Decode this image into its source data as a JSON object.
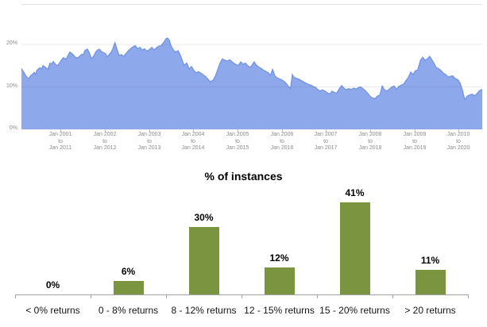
{
  "background": "#ffffff",
  "chart_data": [
    {
      "type": "area",
      "name": "rolling-10-year-returns",
      "ylim": [
        0,
        29.5
      ],
      "grid": "horizontal",
      "colors": {
        "fill": "#8DA9EC",
        "line": "#7392E2",
        "gridline": "rgba(90,90,90,0.14)",
        "top_border": "#e3e3e3",
        "axis_text": "#8b8b8b",
        "tick_mark": "#c2c2c2"
      },
      "y_labels": [
        {
          "label": "0%",
          "value": 0
        },
        {
          "label": "10%",
          "value": 10
        },
        {
          "label": "20%",
          "value": 20
        }
      ],
      "x_labels": [
        {
          "start": "Jan 2001",
          "connector": "to",
          "end": "Jan 2011"
        },
        {
          "start": "Jan 2002",
          "connector": "to",
          "end": "Jan 2012"
        },
        {
          "start": "Jan 2003",
          "connector": "to",
          "end": "Jan 2013"
        },
        {
          "start": "Jan 2004",
          "connector": "to",
          "end": "Jan 2014"
        },
        {
          "start": "Jan 2005",
          "connector": "to",
          "end": "Jan 2015"
        },
        {
          "start": "Jan 2006",
          "connector": "to",
          "end": "Jan 2016"
        },
        {
          "start": "Jan 2007",
          "connector": "to",
          "end": "Jan 2017"
        },
        {
          "start": "Jan 2008",
          "connector": "to",
          "end": "Jan 2018"
        },
        {
          "start": "Jan 2009",
          "connector": "to",
          "end": "Jan 2019"
        },
        {
          "start": "Jan 2010",
          "connector": "to",
          "end": "Jan 2020"
        }
      ],
      "points": [
        [
          0.0,
          14.3
        ],
        [
          0.005,
          13.5
        ],
        [
          0.01,
          12.5
        ],
        [
          0.016,
          11.9
        ],
        [
          0.019,
          12.5
        ],
        [
          0.022,
          12.8
        ],
        [
          0.028,
          13.4
        ],
        [
          0.031,
          13.0
        ],
        [
          0.034,
          14.0
        ],
        [
          0.04,
          14.5
        ],
        [
          0.043,
          14.2
        ],
        [
          0.047,
          15.0
        ],
        [
          0.052,
          14.6
        ],
        [
          0.057,
          14.1
        ],
        [
          0.062,
          15.6
        ],
        [
          0.066,
          15.4
        ],
        [
          0.069,
          16.0
        ],
        [
          0.074,
          15.3
        ],
        [
          0.079,
          15.0
        ],
        [
          0.083,
          15.7
        ],
        [
          0.086,
          16.2
        ],
        [
          0.091,
          16.9
        ],
        [
          0.097,
          16.5
        ],
        [
          0.1,
          17.2
        ],
        [
          0.105,
          18.2
        ],
        [
          0.109,
          17.9
        ],
        [
          0.114,
          17.4
        ],
        [
          0.117,
          17.0
        ],
        [
          0.121,
          16.8
        ],
        [
          0.126,
          17.2
        ],
        [
          0.131,
          17.7
        ],
        [
          0.134,
          17.5
        ],
        [
          0.138,
          18.6
        ],
        [
          0.143,
          18.9
        ],
        [
          0.147,
          18.1
        ],
        [
          0.152,
          16.6
        ],
        [
          0.157,
          17.3
        ],
        [
          0.16,
          18.0
        ],
        [
          0.164,
          18.6
        ],
        [
          0.169,
          18.9
        ],
        [
          0.174,
          18.3
        ],
        [
          0.178,
          18.1
        ],
        [
          0.183,
          17.8
        ],
        [
          0.186,
          17.1
        ],
        [
          0.191,
          17.7
        ],
        [
          0.195,
          18.2
        ],
        [
          0.198,
          18.9
        ],
        [
          0.203,
          20.4
        ],
        [
          0.207,
          19.0
        ],
        [
          0.212,
          17.4
        ],
        [
          0.217,
          17.6
        ],
        [
          0.222,
          17.2
        ],
        [
          0.228,
          18.0
        ],
        [
          0.233,
          18.6
        ],
        [
          0.238,
          19.1
        ],
        [
          0.243,
          19.5
        ],
        [
          0.247,
          19.7
        ],
        [
          0.252,
          19.0
        ],
        [
          0.257,
          19.3
        ],
        [
          0.262,
          18.7
        ],
        [
          0.267,
          19.0
        ],
        [
          0.272,
          18.4
        ],
        [
          0.278,
          18.8
        ],
        [
          0.283,
          19.3
        ],
        [
          0.288,
          18.7
        ],
        [
          0.293,
          19.2
        ],
        [
          0.298,
          19.6
        ],
        [
          0.303,
          19.7
        ],
        [
          0.309,
          20.5
        ],
        [
          0.314,
          21.4
        ],
        [
          0.317,
          21.5
        ],
        [
          0.321,
          21.0
        ],
        [
          0.324,
          19.8
        ],
        [
          0.329,
          18.8
        ],
        [
          0.334,
          18.2
        ],
        [
          0.34,
          18.5
        ],
        [
          0.345,
          17.4
        ],
        [
          0.35,
          15.9
        ],
        [
          0.353,
          15.1
        ],
        [
          0.359,
          15.6
        ],
        [
          0.364,
          14.2
        ],
        [
          0.369,
          14.8
        ],
        [
          0.374,
          13.9
        ],
        [
          0.379,
          13.3
        ],
        [
          0.384,
          13.6
        ],
        [
          0.39,
          13.2
        ],
        [
          0.395,
          12.8
        ],
        [
          0.4,
          12.4
        ],
        [
          0.405,
          11.8
        ],
        [
          0.41,
          11.2
        ],
        [
          0.416,
          11.6
        ],
        [
          0.421,
          12.6
        ],
        [
          0.426,
          14.1
        ],
        [
          0.431,
          15.6
        ],
        [
          0.436,
          16.6
        ],
        [
          0.441,
          16.3
        ],
        [
          0.447,
          16.1
        ],
        [
          0.452,
          16.4
        ],
        [
          0.457,
          15.9
        ],
        [
          0.462,
          15.5
        ],
        [
          0.467,
          15.2
        ],
        [
          0.471,
          15.1
        ],
        [
          0.476,
          15.9
        ],
        [
          0.481,
          15.3
        ],
        [
          0.486,
          15.6
        ],
        [
          0.491,
          15.0
        ],
        [
          0.497,
          14.6
        ],
        [
          0.502,
          15.4
        ],
        [
          0.505,
          15.9
        ],
        [
          0.51,
          15.1
        ],
        [
          0.516,
          14.6
        ],
        [
          0.521,
          14.3
        ],
        [
          0.526,
          13.9
        ],
        [
          0.531,
          13.6
        ],
        [
          0.536,
          13.3
        ],
        [
          0.54,
          12.7
        ],
        [
          0.545,
          14.1
        ],
        [
          0.55,
          12.6
        ],
        [
          0.555,
          12.1
        ],
        [
          0.56,
          11.9
        ],
        [
          0.566,
          11.6
        ],
        [
          0.571,
          11.2
        ],
        [
          0.576,
          10.6
        ],
        [
          0.581,
          9.9
        ],
        [
          0.584,
          9.6
        ],
        [
          0.588,
          12.9
        ],
        [
          0.591,
          12.3
        ],
        [
          0.597,
          12.0
        ],
        [
          0.602,
          11.8
        ],
        [
          0.607,
          11.5
        ],
        [
          0.612,
          11.2
        ],
        [
          0.617,
          10.9
        ],
        [
          0.622,
          10.6
        ],
        [
          0.628,
          10.4
        ],
        [
          0.633,
          10.1
        ],
        [
          0.638,
          9.9
        ],
        [
          0.643,
          9.4
        ],
        [
          0.648,
          9.0
        ],
        [
          0.653,
          9.3
        ],
        [
          0.659,
          9.0
        ],
        [
          0.664,
          8.6
        ],
        [
          0.669,
          8.3
        ],
        [
          0.674,
          9.0
        ],
        [
          0.679,
          8.7
        ],
        [
          0.684,
          8.5
        ],
        [
          0.69,
          9.6
        ],
        [
          0.695,
          10.3
        ],
        [
          0.7,
          9.7
        ],
        [
          0.705,
          9.3
        ],
        [
          0.71,
          9.6
        ],
        [
          0.716,
          9.4
        ],
        [
          0.721,
          9.7
        ],
        [
          0.726,
          9.5
        ],
        [
          0.731,
          9.8
        ],
        [
          0.736,
          10.0
        ],
        [
          0.741,
          9.6
        ],
        [
          0.747,
          9.0
        ],
        [
          0.752,
          8.4
        ],
        [
          0.757,
          7.7
        ],
        [
          0.762,
          7.4
        ],
        [
          0.767,
          7.2
        ],
        [
          0.772,
          7.8
        ],
        [
          0.778,
          8.1
        ],
        [
          0.783,
          10.2
        ],
        [
          0.788,
          9.3
        ],
        [
          0.793,
          9.0
        ],
        [
          0.798,
          9.4
        ],
        [
          0.803,
          9.9
        ],
        [
          0.809,
          10.2
        ],
        [
          0.814,
          9.4
        ],
        [
          0.819,
          10.1
        ],
        [
          0.824,
          10.4
        ],
        [
          0.829,
          10.6
        ],
        [
          0.834,
          11.4
        ],
        [
          0.84,
          12.3
        ],
        [
          0.845,
          13.5
        ],
        [
          0.85,
          12.9
        ],
        [
          0.855,
          13.8
        ],
        [
          0.86,
          14.0
        ],
        [
          0.866,
          16.3
        ],
        [
          0.871,
          17.0
        ],
        [
          0.876,
          16.2
        ],
        [
          0.881,
          16.6
        ],
        [
          0.886,
          17.2
        ],
        [
          0.89,
          16.5
        ],
        [
          0.895,
          15.6
        ],
        [
          0.9,
          14.6
        ],
        [
          0.905,
          14.3
        ],
        [
          0.91,
          13.9
        ],
        [
          0.916,
          13.2
        ],
        [
          0.921,
          12.9
        ],
        [
          0.926,
          12.3
        ],
        [
          0.931,
          12.5
        ],
        [
          0.936,
          12.6
        ],
        [
          0.941,
          12.0
        ],
        [
          0.947,
          11.7
        ],
        [
          0.952,
          10.9
        ],
        [
          0.957,
          9.2
        ],
        [
          0.962,
          7.0
        ],
        [
          0.967,
          7.8
        ],
        [
          0.972,
          8.1
        ],
        [
          0.978,
          8.3
        ],
        [
          0.983,
          7.9
        ],
        [
          0.988,
          8.3
        ],
        [
          0.993,
          9.0
        ],
        [
          0.998,
          9.3
        ],
        [
          1.0,
          9.4
        ]
      ]
    },
    {
      "type": "bar",
      "title": "% of instances",
      "categories": [
        "< 0% returns",
        "0 - 8% returns",
        "8 - 12% returns",
        "12 - 15% returns",
        "15 - 20% returns",
        "> 20 returns"
      ],
      "values": [
        0,
        6,
        30,
        12,
        41,
        11
      ],
      "value_labels": [
        "0%",
        "6%",
        "30%",
        "12%",
        "41%",
        "11%"
      ],
      "ylim": [
        0,
        45
      ],
      "grid": "off",
      "legend": "none",
      "colors": {
        "bar": "#7A9440",
        "axis": "#a3a3a3",
        "label_text": "#000000",
        "category_text": "#141414"
      }
    }
  ]
}
